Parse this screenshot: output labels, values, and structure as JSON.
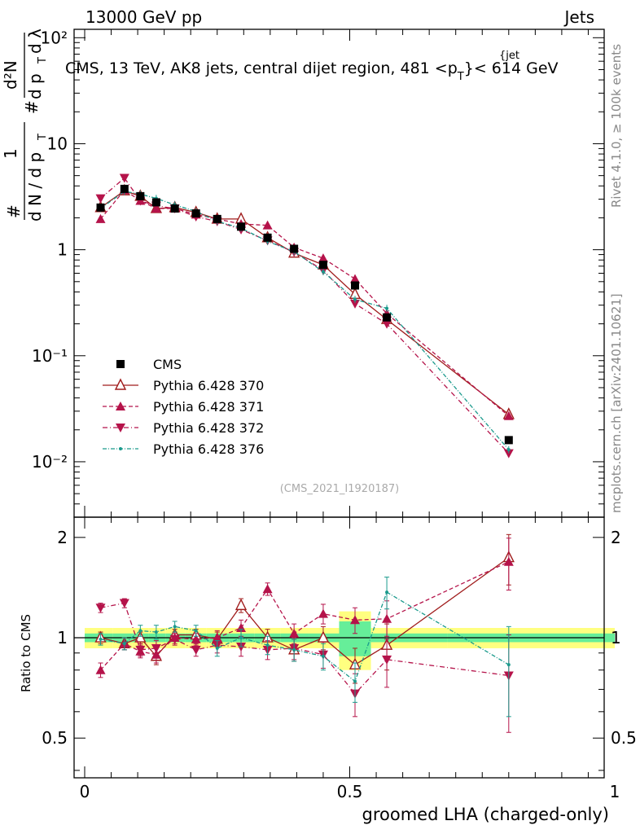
{
  "header": {
    "left": "13000 GeV pp",
    "right": "Jets"
  },
  "title": "CMS, 13 TeV, AK8 jets, central dijet region, 481 <p",
  "title_sup": "{jet",
  "title_sub": "T",
  "title_end": "}< 614 GeV",
  "ylabel_parts": {
    "hash": "#",
    "one": "1",
    "dN_dpT": "d N / d p",
    "T": "T",
    "hash2": "#",
    "d2N": "d²N",
    "dpTdl": "d p",
    "T2": "T",
    "dlambda": "d λ"
  },
  "side_labels": {
    "rivet": "Rivet 4.1.0, ≥ 100k events",
    "mcplots": "mcplots.cern.ch [arXiv:2401.10621]"
  },
  "watermark": "(CMS_2021_I1920187)",
  "xlabel": "groomed LHA (charged-only)",
  "ratio_ylabel": "Ratio to CMS",
  "main_yticks": [
    {
      "v": 100,
      "label": "10²"
    },
    {
      "v": 10,
      "label": "10"
    },
    {
      "v": 1,
      "label": "1"
    },
    {
      "v": 0.1,
      "label": "10⁻¹"
    },
    {
      "v": 0.01,
      "label": "10⁻²"
    }
  ],
  "ratio_yticks": [
    {
      "v": 2,
      "label": "2"
    },
    {
      "v": 1,
      "label": "1"
    },
    {
      "v": 0.5,
      "label": "0.5"
    }
  ],
  "xticks": [
    {
      "v": 0,
      "label": "0"
    },
    {
      "v": 0.5,
      "label": "0.5"
    },
    {
      "v": 1,
      "label": "1"
    }
  ],
  "legend": [
    {
      "label": "CMS"
    },
    {
      "label": "Pythia 6.428 370"
    },
    {
      "label": "Pythia 6.428 371"
    },
    {
      "label": "Pythia 6.428 372"
    },
    {
      "label": "Pythia 6.428 376"
    }
  ],
  "chart_data": {
    "type": "line",
    "title": "CMS, 13 TeV, AK8 jets, central dijet region, 481 < pT(jet) < 614 GeV",
    "xlabel": "groomed LHA (charged-only)",
    "ylabel": "1/dN/dpT d2N/dpT dlambda",
    "xlim": [
      0,
      1
    ],
    "ylim": [
      0.003,
      120
    ],
    "yscale": "log",
    "ratio_ylim": [
      0.38,
      2.3
    ],
    "x": [
      0.03,
      0.075,
      0.105,
      0.135,
      0.17,
      0.21,
      0.25,
      0.295,
      0.345,
      0.395,
      0.45,
      0.51,
      0.57,
      0.8
    ],
    "cms": {
      "name": "CMS",
      "color": "#000000",
      "values": [
        2.5,
        3.75,
        3.2,
        2.8,
        2.45,
        2.2,
        1.95,
        1.65,
        1.3,
        1.02,
        0.72,
        0.46,
        0.23,
        0.016
      ],
      "band_inner": [
        0.03,
        0.03,
        0.03,
        0.03,
        0.03,
        0.03,
        0.03,
        0.03,
        0.03,
        0.03,
        0.03,
        0.12,
        0.03,
        0.03
      ],
      "band_outer": [
        0.07,
        0.07,
        0.07,
        0.07,
        0.07,
        0.07,
        0.07,
        0.07,
        0.07,
        0.07,
        0.07,
        0.2,
        0.07,
        0.07
      ]
    },
    "series": [
      {
        "name": "Pythia 6.428 370",
        "color": "#a01c1c",
        "dash": "",
        "marker": "tri-open",
        "values": [
          2.5,
          3.6,
          3.2,
          2.45,
          2.5,
          2.25,
          1.95,
          1.95,
          1.3,
          0.93,
          0.72,
          0.38,
          0.22,
          0.028
        ],
        "ratio": [
          1.0,
          0.96,
          1.0,
          0.88,
          1.02,
          1.02,
          0.99,
          1.25,
          1.0,
          0.92,
          1.0,
          0.83,
          0.95,
          1.74
        ],
        "ratio_err": [
          0.04,
          0.04,
          0.04,
          0.05,
          0.04,
          0.04,
          0.05,
          0.06,
          0.06,
          0.07,
          0.08,
          0.1,
          0.15,
          0.3
        ]
      },
      {
        "name": "Pythia 6.428 371",
        "color": "#b5134a",
        "dash": "5,3",
        "marker": "tri-up",
        "values": [
          1.95,
          3.65,
          2.9,
          2.45,
          2.45,
          2.15,
          1.95,
          1.75,
          1.7,
          1.05,
          0.83,
          0.53,
          0.25,
          0.027
        ],
        "ratio": [
          0.8,
          0.96,
          0.91,
          0.89,
          1.0,
          0.99,
          1.0,
          1.07,
          1.4,
          1.03,
          1.18,
          1.13,
          1.14,
          1.69
        ],
        "ratio_err": [
          0.04,
          0.04,
          0.04,
          0.05,
          0.04,
          0.04,
          0.05,
          0.06,
          0.06,
          0.07,
          0.08,
          0.1,
          0.15,
          0.3
        ]
      },
      {
        "name": "Pythia 6.428 372",
        "color": "#b5134a",
        "dash": "6,3,1,3",
        "marker": "tri-down",
        "values": [
          3.05,
          4.75,
          2.9,
          2.6,
          2.45,
          2.05,
          1.85,
          1.55,
          1.22,
          0.95,
          0.64,
          0.31,
          0.2,
          0.012
        ],
        "ratio": [
          1.23,
          1.27,
          0.92,
          0.93,
          0.99,
          0.92,
          0.95,
          0.94,
          0.92,
          0.93,
          0.89,
          0.68,
          0.86,
          0.77
        ],
        "ratio_err": [
          0.04,
          0.04,
          0.04,
          0.05,
          0.04,
          0.04,
          0.05,
          0.06,
          0.06,
          0.07,
          0.08,
          0.1,
          0.15,
          0.25
        ]
      },
      {
        "name": "Pythia 6.428 376",
        "color": "#1a9a8c",
        "dash": "5,2,1,2",
        "marker": "dot",
        "values": [
          2.45,
          3.55,
          3.35,
          3.05,
          2.65,
          2.3,
          1.85,
          1.6,
          1.2,
          0.96,
          0.62,
          0.34,
          0.28,
          0.013
        ],
        "ratio": [
          0.99,
          0.96,
          1.05,
          1.04,
          1.08,
          1.05,
          0.93,
          1.0,
          0.95,
          0.92,
          0.88,
          0.74,
          1.37,
          0.83
        ],
        "ratio_err": [
          0.04,
          0.04,
          0.04,
          0.05,
          0.04,
          0.04,
          0.05,
          0.06,
          0.06,
          0.07,
          0.08,
          0.1,
          0.15,
          0.25
        ]
      }
    ]
  }
}
